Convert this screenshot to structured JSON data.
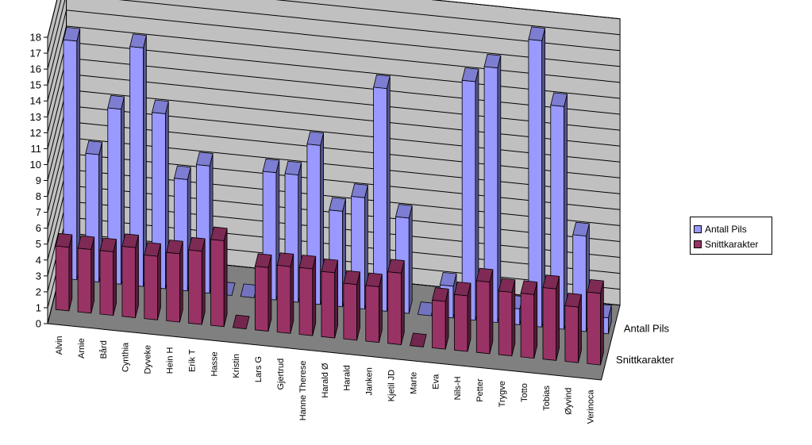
{
  "chart_data": {
    "type": "bar",
    "categories": [
      "Alvin",
      "Arnie",
      "Bård",
      "Cynthia",
      "Dyveke",
      "Hein H",
      "Erik T",
      "Hasse",
      "Kristin",
      "Lars G",
      "Gjertrud",
      "Hanne Therese",
      "Harald Ø",
      "Harald",
      "Janken",
      "Kjetil JD",
      "Marte",
      "Eva",
      "Nils-H",
      "Petter",
      "Trygve",
      "Totto",
      "Tobias",
      "Øyvind",
      "Verinoca"
    ],
    "series": [
      {
        "name": "Antall Pils",
        "color": "#9999ff",
        "values": [
          15,
          8,
          11,
          15,
          11,
          7,
          8,
          0,
          0,
          8,
          8,
          10,
          6,
          7,
          14,
          6,
          0,
          2,
          15,
          16,
          1,
          18,
          14,
          6,
          1
        ]
      },
      {
        "name": "Snittkarakter",
        "color": "#993366",
        "values": [
          4,
          4,
          4,
          4.4,
          4,
          4.3,
          4.6,
          5.4,
          0,
          4,
          4.2,
          4.2,
          4.1,
          3.5,
          3.5,
          4.5,
          0,
          3,
          3.5,
          4.5,
          4,
          4,
          4.5,
          3.5,
          4.5
        ]
      }
    ],
    "ylim": [
      0,
      18
    ],
    "yticks": [
      "0",
      "1",
      "2",
      "3",
      "4",
      "5",
      "6",
      "7",
      "8",
      "9",
      "10",
      "11",
      "12",
      "13",
      "14",
      "15",
      "16",
      "17",
      "18"
    ],
    "depth_labels": [
      "Snittkarakter",
      "Antall Pils"
    ],
    "grid": true,
    "legend": "right"
  }
}
